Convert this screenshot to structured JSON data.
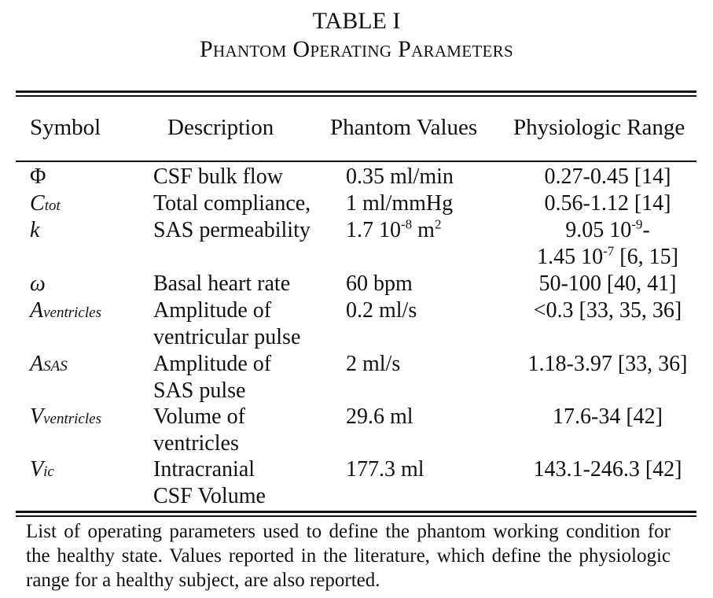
{
  "table": {
    "number": "TABLE I",
    "title": "Phantom Operating Parameters",
    "headers": [
      "Symbol",
      "Description",
      "Phantom Values",
      "Physiologic Range"
    ],
    "rows": [
      {
        "symbol": "Φ",
        "sub": "",
        "desc1": "CSF bulk flow",
        "desc2": "",
        "val_a": "0.35 ml/min",
        "val_sup": "",
        "val_b": "",
        "range1_a": "0.27-0.45 [14]",
        "range1_sup": "",
        "range1_b": "",
        "range2_a": "",
        "range2_sup": "",
        "range2_b": ""
      },
      {
        "symbol": "C",
        "sub": "tot",
        "desc1": "Total compliance,",
        "desc2": "",
        "val_a": "1 ml/mmHg",
        "val_sup": "",
        "val_b": "",
        "range1_a": "0.56-1.12 [14]",
        "range1_sup": "",
        "range1_b": "",
        "range2_a": "",
        "range2_sup": "",
        "range2_b": ""
      },
      {
        "symbol": "k",
        "sub": "",
        "desc1": "SAS permeability",
        "desc2": "",
        "val_a": "1.7 10",
        "val_sup": "-8",
        "val_b": " m",
        "val_sup2": "2",
        "range1_a": "9.05 10",
        "range1_sup": "-9",
        "range1_b": "-",
        "range2_a": "1.45 10",
        "range2_sup": "-7",
        "range2_b": " [6, 15]"
      },
      {
        "symbol": "ω",
        "sub": "",
        "desc1": "Basal heart rate",
        "desc2": "",
        "val_a": "60 bpm",
        "val_sup": "",
        "val_b": "",
        "range1_a": "50-100 [40, 41]",
        "range1_sup": "",
        "range1_b": "",
        "range2_a": "",
        "range2_sup": "",
        "range2_b": ""
      },
      {
        "symbol": "A",
        "sub": "ventricles",
        "desc1": "Amplitude of",
        "desc2": "ventricular pulse",
        "val_a": "0.2 ml/s",
        "val_sup": "",
        "val_b": "",
        "range1_a": "<0.3 [33, 35, 36]",
        "range1_sup": "",
        "range1_b": "",
        "range2_a": "",
        "range2_sup": "",
        "range2_b": ""
      },
      {
        "symbol": "A",
        "sub": "SAS",
        "desc1": "Amplitude of",
        "desc2": "SAS pulse",
        "val_a": "2 ml/s",
        "val_sup": "",
        "val_b": "",
        "range1_a": "1.18-3.97 [33, 36]",
        "range1_sup": "",
        "range1_b": "",
        "range2_a": "",
        "range2_sup": "",
        "range2_b": ""
      },
      {
        "symbol": "V",
        "sub": "ventricles",
        "desc1": "Volume of",
        "desc2": "ventricles",
        "val_a": "29.6 ml",
        "val_sup": "",
        "val_b": "",
        "range1_a": "17.6-34 [42]",
        "range1_sup": "",
        "range1_b": "",
        "range2_a": "",
        "range2_sup": "",
        "range2_b": ""
      },
      {
        "symbol": "V",
        "sub": "ic",
        "desc1": "Intracranial",
        "desc2": "CSF Volume",
        "val_a": "177.3 ml",
        "val_sup": "",
        "val_b": "",
        "range1_a": "143.1-246.3 [42]",
        "range1_sup": "",
        "range1_b": "",
        "range2_a": "",
        "range2_sup": "",
        "range2_b": ""
      }
    ],
    "caption": "List of operating parameters used to define the phantom working condition for the healthy state. Values reported in the literature, which define the physiologic range for a healthy subject, are also reported."
  }
}
